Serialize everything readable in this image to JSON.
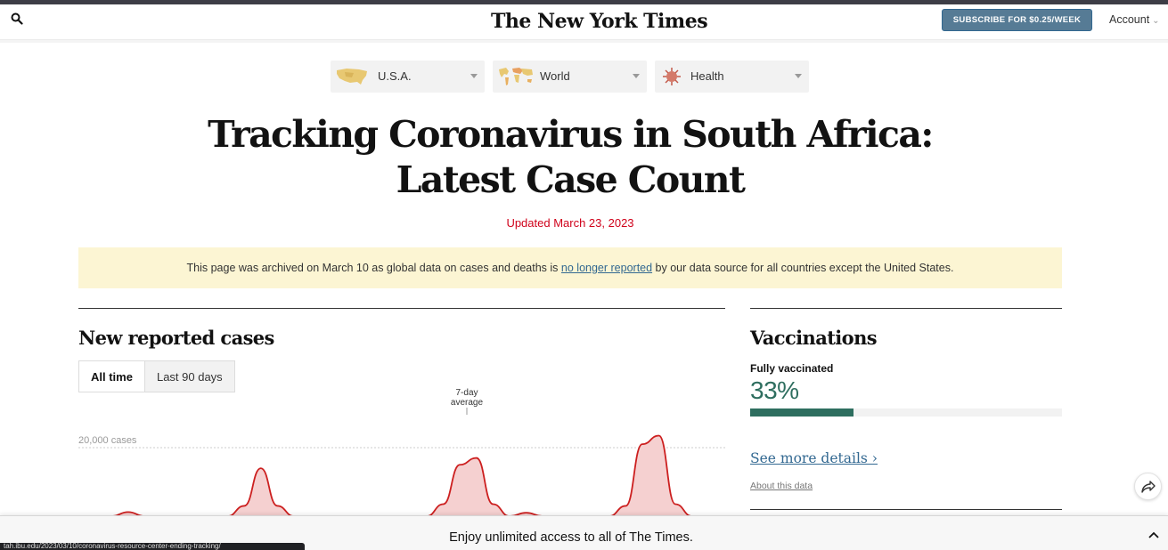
{
  "masthead": {
    "logo_text": "The New York Times",
    "subscribe_label": "SUBSCRIBE FOR $0.25/WEEK",
    "account_label": "Account"
  },
  "nav_dropdowns": [
    {
      "label": "U.S.A.",
      "icon": "usa-map-icon"
    },
    {
      "label": "World",
      "icon": "world-map-icon"
    },
    {
      "label": "Health",
      "icon": "virus-icon"
    }
  ],
  "headline": {
    "line1": "Tracking Coronavirus in South Africa:",
    "line2": "Latest Case Count",
    "updated": "Updated March 23, 2023"
  },
  "banner": {
    "text_before": "This page was archived on March 10 as global data on cases and deaths is ",
    "link_text": "no longer reported",
    "text_after": " by our data source for all countries except the United States."
  },
  "cases_section": {
    "title": "New reported cases",
    "toggle": {
      "all_time": "All time",
      "last_90": "Last 90 days",
      "selected": "All time"
    },
    "annotation_line1": "7-day",
    "annotation_line2": "average",
    "gridline_label": "20,000 cases"
  },
  "chart_data": {
    "type": "line",
    "title": "New reported cases",
    "ylabel": "",
    "gridlines": [
      20000
    ],
    "series": [
      {
        "name": "7-day average",
        "values": [
          0,
          0,
          0,
          1200,
          0,
          0,
          0,
          0,
          0,
          0,
          3000,
          14000,
          3000,
          0,
          0,
          0,
          0,
          0,
          0,
          0,
          0,
          0,
          3500,
          15000,
          17000,
          3500,
          0,
          1000,
          0,
          0,
          0,
          0,
          0,
          3000,
          21000,
          23500,
          3500,
          0,
          0,
          0
        ]
      }
    ],
    "colors": {
      "line": "#cc1f1f",
      "area": "#f5d0d0"
    }
  },
  "vaccinations": {
    "title": "Vaccinations",
    "label": "Fully vaccinated",
    "percent_text": "33%",
    "fraction": 0.33,
    "more_link": "See more details ›",
    "about_link": "About this data"
  },
  "bottom_bar": {
    "text": "Enjoy unlimited access to all of The Times.",
    "url_hint": "tah.ibu.edu/2023/03/10/coronavirus-resource-center-ending-tracking/"
  },
  "colors": {
    "accent_blue": "#326891",
    "subscribe_bg": "#567b95",
    "updated_red": "#d0021b",
    "banner_bg": "#fcf5d3",
    "vaccine_green": "#2e6e5f"
  }
}
